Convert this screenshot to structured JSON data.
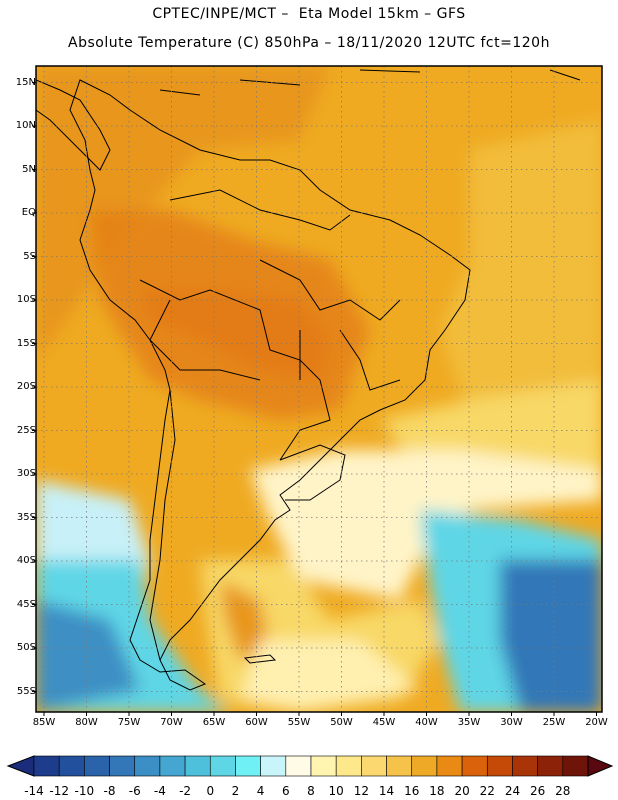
{
  "header": {
    "line1": "CPTEC/INPE/MCT –  Eta Model 15km – GFS",
    "line2": "Absolute Temperature (C) 850hPa – 18/11/2020 12UTC fct=120h"
  },
  "axes": {
    "lat_ticks": [
      "15N",
      "10N",
      "5N",
      "EQ",
      "5S",
      "10S",
      "15S",
      "20S",
      "25S",
      "30S",
      "35S",
      "40S",
      "45S",
      "50S",
      "55S"
    ],
    "lon_ticks": [
      "85W",
      "80W",
      "75W",
      "70W",
      "65W",
      "60W",
      "55W",
      "50W",
      "45W",
      "40W",
      "35W",
      "30W",
      "25W",
      "20W"
    ]
  },
  "colorbar": {
    "labels": [
      "-14",
      "-12",
      "-10",
      "-8",
      "-6",
      "-4",
      "-2",
      "0",
      "2",
      "4",
      "6",
      "8",
      "10",
      "12",
      "14",
      "16",
      "18",
      "20",
      "22",
      "24",
      "26",
      "28"
    ],
    "colors": [
      "#1d3d8c",
      "#23509d",
      "#2b63ab",
      "#3377b8",
      "#3c8fc4",
      "#45a7d1",
      "#4fc0dc",
      "#5fd6e6",
      "#6ff0f5",
      "#c8f4fa",
      "#fffbe6",
      "#fff5b0",
      "#fde98c",
      "#fbd970",
      "#f5c34a",
      "#eeaa26",
      "#e88a14",
      "#d9620a",
      "#c54a08",
      "#a83408",
      "#8c2208",
      "#6e1408"
    ]
  }
}
